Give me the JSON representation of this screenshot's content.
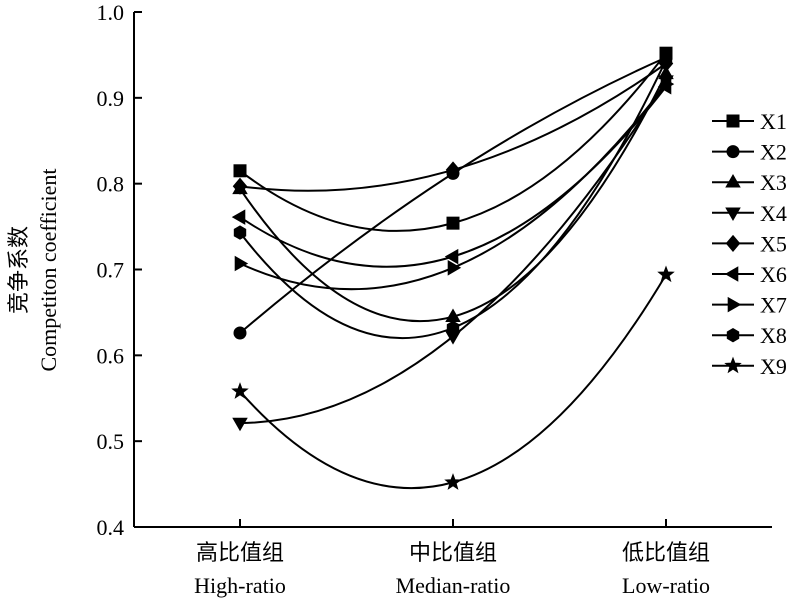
{
  "chart_data": {
    "type": "line",
    "ylabel_zh": "竞争系数",
    "ylabel_en": "Competiton coefficient",
    "categories_zh": [
      "高比值组",
      "中比值组",
      "低比值组"
    ],
    "categories_en": [
      "High-ratio",
      "Median-ratio",
      "Low-ratio"
    ],
    "ylim": [
      0.4,
      1.0
    ],
    "yticks": [
      "0.4",
      "0.5",
      "0.6",
      "0.7",
      "0.8",
      "0.9",
      "1.0"
    ],
    "grid": false,
    "legend_position": "right",
    "line_color": "#000000",
    "series": [
      {
        "name": "X1",
        "marker": "square",
        "values": [
          0.815,
          0.754,
          0.952
        ]
      },
      {
        "name": "X2",
        "marker": "circle",
        "values": [
          0.626,
          0.812,
          0.947
        ]
      },
      {
        "name": "X3",
        "marker": "triangle-up",
        "values": [
          0.794,
          0.645,
          0.928
        ]
      },
      {
        "name": "X4",
        "marker": "triangle-down",
        "values": [
          0.521,
          0.622,
          0.92
        ]
      },
      {
        "name": "X5",
        "marker": "diamond",
        "values": [
          0.797,
          0.816,
          0.94
        ]
      },
      {
        "name": "X6",
        "marker": "triangle-left",
        "values": [
          0.761,
          0.715,
          0.913
        ]
      },
      {
        "name": "X7",
        "marker": "triangle-right",
        "values": [
          0.707,
          0.702,
          0.916
        ]
      },
      {
        "name": "X8",
        "marker": "hexagon",
        "values": [
          0.743,
          0.632,
          0.944
        ]
      },
      {
        "name": "X9",
        "marker": "star",
        "values": [
          0.558,
          0.452,
          0.694
        ]
      }
    ]
  }
}
